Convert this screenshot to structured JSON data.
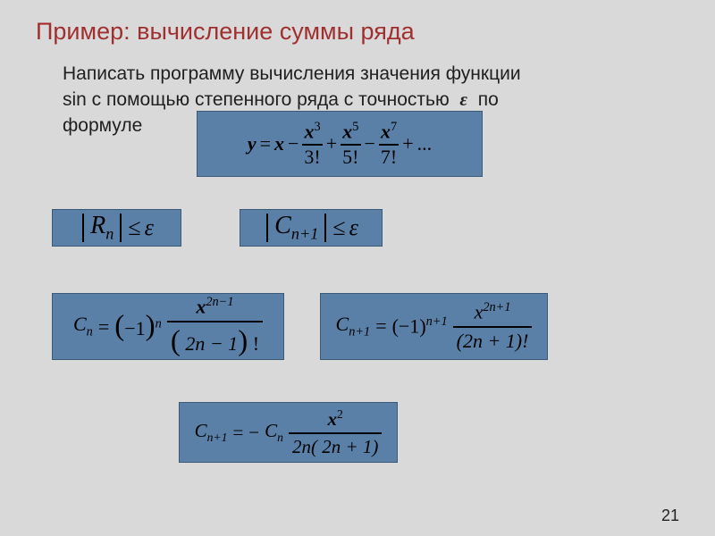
{
  "title": "Пример: вычисление суммы ряда",
  "description_l1": "Написать программу вычисления значения функции",
  "description_l2a": "sin с помощью степенного ряда с точностью",
  "description_l2b": "по",
  "description_l3": "формуле",
  "eps": "ε",
  "series": {
    "y": "y",
    "eq": "=",
    "x": "x",
    "minus": "−",
    "plus": "+",
    "dots": "...",
    "x3": "x",
    "e3": "3",
    "d3": "3!",
    "x5": "x",
    "e5": "5",
    "d5": "5!",
    "x7": "x",
    "e7": "7",
    "d7": "7!"
  },
  "rn": {
    "R": "R",
    "n": "n",
    "le": "≤",
    "eps": "ε"
  },
  "cn1": {
    "C": "C",
    "np1": "n+1",
    "le": "≤",
    "eps": "ε"
  },
  "cn": {
    "C": "C",
    "n": "n",
    "eq": "=",
    "neg1": "−1",
    "x": "x",
    "exp": "2n−1",
    "den": "2n − 1",
    "fact": "!"
  },
  "cnp1": {
    "C": "C",
    "np1": "n+1",
    "eq": "=",
    "neg1": "(−1)",
    "exp1": "n+1",
    "x": "x",
    "exp": "2n+1",
    "den": "(2n + 1)!"
  },
  "rec": {
    "C": "C",
    "np1": "n+1",
    "eq": "=",
    "neg": "−",
    "Cn": "C",
    "n": "n",
    "x": "x",
    "e2": "2",
    "den": "2n( 2n + 1)"
  },
  "page": "21",
  "colors": {
    "bg": "#d9d9d9",
    "title": "#a03030",
    "box": "#5a80a8"
  }
}
